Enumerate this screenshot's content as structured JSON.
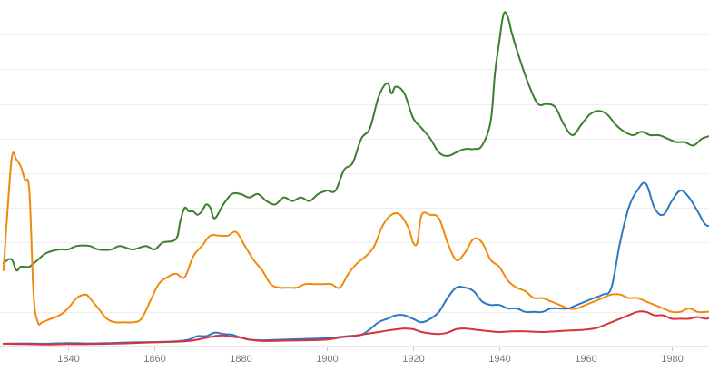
{
  "chart_data": {
    "type": "line",
    "xlim": [
      1825,
      2000
    ],
    "ylim": [
      0,
      100
    ],
    "grid": true,
    "legend": "none",
    "x_ticks": [
      1840,
      1860,
      1880,
      1900,
      1920,
      1940,
      1960,
      1980
    ],
    "x_tick_labels": [
      "1840",
      "1860",
      "1880",
      "1900",
      "1920",
      "1940",
      "1960",
      "1980"
    ],
    "y_gridlines": [
      10,
      20,
      30,
      40,
      50,
      60,
      70,
      80,
      90
    ],
    "series": [
      {
        "color": "#3b7f2e",
        "points": [
          [
            1825,
            24
          ],
          [
            1826,
            25
          ],
          [
            1827,
            25
          ],
          [
            1828,
            22
          ],
          [
            1829,
            23
          ],
          [
            1830,
            23
          ],
          [
            1831,
            23
          ],
          [
            1832,
            24
          ],
          [
            1833,
            25
          ],
          [
            1835,
            27
          ],
          [
            1838,
            28
          ],
          [
            1840,
            28
          ],
          [
            1842,
            29
          ],
          [
            1845,
            29
          ],
          [
            1847,
            28
          ],
          [
            1850,
            28
          ],
          [
            1852,
            29
          ],
          [
            1855,
            28
          ],
          [
            1858,
            29
          ],
          [
            1860,
            28
          ],
          [
            1862,
            30
          ],
          [
            1865,
            31
          ],
          [
            1866,
            36
          ],
          [
            1867,
            40
          ],
          [
            1868,
            39
          ],
          [
            1869,
            39
          ],
          [
            1870,
            38
          ],
          [
            1871,
            39
          ],
          [
            1872,
            41
          ],
          [
            1873,
            40
          ],
          [
            1874,
            37
          ],
          [
            1876,
            41
          ],
          [
            1878,
            44
          ],
          [
            1880,
            44
          ],
          [
            1882,
            43
          ],
          [
            1884,
            44
          ],
          [
            1886,
            42
          ],
          [
            1888,
            41
          ],
          [
            1890,
            43
          ],
          [
            1892,
            42
          ],
          [
            1894,
            43
          ],
          [
            1896,
            42
          ],
          [
            1898,
            44
          ],
          [
            1900,
            45
          ],
          [
            1902,
            45
          ],
          [
            1904,
            51
          ],
          [
            1906,
            53
          ],
          [
            1908,
            60
          ],
          [
            1910,
            63
          ],
          [
            1912,
            72
          ],
          [
            1914,
            76
          ],
          [
            1915,
            73
          ],
          [
            1916,
            75
          ],
          [
            1918,
            73
          ],
          [
            1920,
            66
          ],
          [
            1922,
            63
          ],
          [
            1924,
            60
          ],
          [
            1926,
            56
          ],
          [
            1928,
            55
          ],
          [
            1930,
            56
          ],
          [
            1932,
            57
          ],
          [
            1934,
            57
          ],
          [
            1936,
            58
          ],
          [
            1938,
            65
          ],
          [
            1939,
            79
          ],
          [
            1940,
            88
          ],
          [
            1941,
            96
          ],
          [
            1942,
            95
          ],
          [
            1943,
            90
          ],
          [
            1945,
            82
          ],
          [
            1947,
            75
          ],
          [
            1949,
            70
          ],
          [
            1951,
            70
          ],
          [
            1953,
            69
          ],
          [
            1955,
            64
          ],
          [
            1957,
            61
          ],
          [
            1959,
            64
          ],
          [
            1961,
            67
          ],
          [
            1963,
            68
          ],
          [
            1965,
            67
          ],
          [
            1967,
            64
          ],
          [
            1969,
            62
          ],
          [
            1971,
            61
          ],
          [
            1973,
            62
          ],
          [
            1975,
            61
          ],
          [
            1977,
            61
          ],
          [
            1979,
            60
          ],
          [
            1981,
            59
          ],
          [
            1983,
            59
          ],
          [
            1985,
            58
          ],
          [
            1987,
            60
          ],
          [
            1989,
            61
          ],
          [
            1991,
            64
          ],
          [
            1993,
            68
          ],
          [
            1995,
            67
          ],
          [
            1997,
            68
          ],
          [
            2000,
            68
          ]
        ]
      },
      {
        "color": "#ef8a0c",
        "points": [
          [
            1825,
            22
          ],
          [
            1826,
            40
          ],
          [
            1827,
            55
          ],
          [
            1828,
            54
          ],
          [
            1829,
            52
          ],
          [
            1830,
            48
          ],
          [
            1831,
            45
          ],
          [
            1832,
            15
          ],
          [
            1833,
            7
          ],
          [
            1834,
            7
          ],
          [
            1836,
            8
          ],
          [
            1838,
            9
          ],
          [
            1840,
            11
          ],
          [
            1842,
            14
          ],
          [
            1844,
            15
          ],
          [
            1845,
            14
          ],
          [
            1847,
            11
          ],
          [
            1849,
            8
          ],
          [
            1851,
            7
          ],
          [
            1853,
            7
          ],
          [
            1855,
            7
          ],
          [
            1857,
            8
          ],
          [
            1859,
            13
          ],
          [
            1861,
            18
          ],
          [
            1863,
            20
          ],
          [
            1865,
            21
          ],
          [
            1867,
            20
          ],
          [
            1869,
            26
          ],
          [
            1871,
            29
          ],
          [
            1873,
            32
          ],
          [
            1875,
            32
          ],
          [
            1877,
            32
          ],
          [
            1879,
            33
          ],
          [
            1881,
            29
          ],
          [
            1883,
            25
          ],
          [
            1885,
            22
          ],
          [
            1887,
            18
          ],
          [
            1889,
            17
          ],
          [
            1891,
            17
          ],
          [
            1893,
            17
          ],
          [
            1895,
            18
          ],
          [
            1897,
            18
          ],
          [
            1899,
            18
          ],
          [
            1901,
            18
          ],
          [
            1903,
            17
          ],
          [
            1905,
            21
          ],
          [
            1907,
            24
          ],
          [
            1909,
            26
          ],
          [
            1911,
            29
          ],
          [
            1913,
            35
          ],
          [
            1915,
            38
          ],
          [
            1917,
            38
          ],
          [
            1919,
            34
          ],
          [
            1920,
            30
          ],
          [
            1921,
            30
          ],
          [
            1922,
            38
          ],
          [
            1924,
            38
          ],
          [
            1926,
            37
          ],
          [
            1928,
            30
          ],
          [
            1930,
            25
          ],
          [
            1932,
            27
          ],
          [
            1934,
            31
          ],
          [
            1936,
            30
          ],
          [
            1938,
            25
          ],
          [
            1940,
            23
          ],
          [
            1942,
            19
          ],
          [
            1944,
            17
          ],
          [
            1946,
            16
          ],
          [
            1948,
            14
          ],
          [
            1950,
            14
          ],
          [
            1952,
            13
          ],
          [
            1954,
            12
          ],
          [
            1956,
            11
          ],
          [
            1958,
            11
          ],
          [
            1960,
            12
          ],
          [
            1962,
            13
          ],
          [
            1964,
            14
          ],
          [
            1966,
            15
          ],
          [
            1968,
            15
          ],
          [
            1970,
            14
          ],
          [
            1972,
            14
          ],
          [
            1974,
            13
          ],
          [
            1976,
            12
          ],
          [
            1978,
            11
          ],
          [
            1980,
            10
          ],
          [
            1982,
            10
          ],
          [
            1984,
            11
          ],
          [
            1986,
            10
          ],
          [
            1988,
            10
          ],
          [
            1990,
            10
          ],
          [
            1992,
            10
          ],
          [
            1994,
            10
          ],
          [
            1996,
            9
          ],
          [
            2000,
            9
          ]
        ]
      },
      {
        "color": "#2d78c4",
        "points": [
          [
            1825,
            0.8
          ],
          [
            1830,
            0.9
          ],
          [
            1835,
            0.8
          ],
          [
            1840,
            1.0
          ],
          [
            1845,
            0.9
          ],
          [
            1850,
            1.0
          ],
          [
            1855,
            1.2
          ],
          [
            1860,
            1.3
          ],
          [
            1865,
            1.5
          ],
          [
            1868,
            2
          ],
          [
            1870,
            3
          ],
          [
            1872,
            3
          ],
          [
            1874,
            4
          ],
          [
            1876,
            3.6
          ],
          [
            1878,
            3.4
          ],
          [
            1880,
            2.6
          ],
          [
            1882,
            2.0
          ],
          [
            1885,
            1.8
          ],
          [
            1888,
            1.9
          ],
          [
            1890,
            2.0
          ],
          [
            1895,
            2.2
          ],
          [
            1900,
            2.4
          ],
          [
            1905,
            3.0
          ],
          [
            1908,
            3.4
          ],
          [
            1910,
            5
          ],
          [
            1912,
            7
          ],
          [
            1914,
            8
          ],
          [
            1916,
            9
          ],
          [
            1918,
            9
          ],
          [
            1920,
            8
          ],
          [
            1922,
            7
          ],
          [
            1924,
            8
          ],
          [
            1926,
            10
          ],
          [
            1928,
            14
          ],
          [
            1930,
            17
          ],
          [
            1932,
            17
          ],
          [
            1934,
            16
          ],
          [
            1936,
            13
          ],
          [
            1938,
            12
          ],
          [
            1940,
            12
          ],
          [
            1942,
            11
          ],
          [
            1944,
            11
          ],
          [
            1946,
            10
          ],
          [
            1948,
            10
          ],
          [
            1950,
            10
          ],
          [
            1952,
            11
          ],
          [
            1954,
            11
          ],
          [
            1956,
            11
          ],
          [
            1958,
            12
          ],
          [
            1960,
            13
          ],
          [
            1962,
            14
          ],
          [
            1964,
            15
          ],
          [
            1966,
            17
          ],
          [
            1968,
            30
          ],
          [
            1970,
            40
          ],
          [
            1972,
            45
          ],
          [
            1974,
            47
          ],
          [
            1976,
            40
          ],
          [
            1978,
            38
          ],
          [
            1980,
            42
          ],
          [
            1982,
            45
          ],
          [
            1984,
            43
          ],
          [
            1986,
            39
          ],
          [
            1988,
            35
          ],
          [
            1990,
            36
          ],
          [
            1992,
            39
          ],
          [
            1994,
            37
          ],
          [
            1996,
            38
          ],
          [
            1998,
            39
          ],
          [
            2000,
            40
          ]
        ]
      },
      {
        "color": "#d6333a",
        "points": [
          [
            1825,
            0.8
          ],
          [
            1830,
            0.7
          ],
          [
            1835,
            0.6
          ],
          [
            1840,
            0.7
          ],
          [
            1845,
            0.7
          ],
          [
            1850,
            0.8
          ],
          [
            1855,
            1.0
          ],
          [
            1860,
            1.2
          ],
          [
            1865,
            1.4
          ],
          [
            1868,
            1.6
          ],
          [
            1870,
            2.0
          ],
          [
            1872,
            2.5
          ],
          [
            1874,
            3.0
          ],
          [
            1876,
            3.2
          ],
          [
            1878,
            2.8
          ],
          [
            1880,
            2.6
          ],
          [
            1882,
            2.0
          ],
          [
            1885,
            1.6
          ],
          [
            1890,
            1.7
          ],
          [
            1895,
            1.8
          ],
          [
            1900,
            2.0
          ],
          [
            1903,
            2.6
          ],
          [
            1906,
            3.0
          ],
          [
            1909,
            3.6
          ],
          [
            1912,
            4.2
          ],
          [
            1915,
            4.8
          ],
          [
            1918,
            5.2
          ],
          [
            1920,
            5.0
          ],
          [
            1922,
            4.2
          ],
          [
            1924,
            3.8
          ],
          [
            1926,
            3.6
          ],
          [
            1928,
            4.0
          ],
          [
            1930,
            5.0
          ],
          [
            1932,
            5.2
          ],
          [
            1935,
            4.8
          ],
          [
            1938,
            4.4
          ],
          [
            1940,
            4.2
          ],
          [
            1943,
            4.4
          ],
          [
            1946,
            4.4
          ],
          [
            1950,
            4.2
          ],
          [
            1953,
            4.4
          ],
          [
            1956,
            4.6
          ],
          [
            1959,
            4.8
          ],
          [
            1962,
            5.2
          ],
          [
            1964,
            6
          ],
          [
            1966,
            7
          ],
          [
            1968,
            8
          ],
          [
            1970,
            9
          ],
          [
            1972,
            10
          ],
          [
            1974,
            10
          ],
          [
            1976,
            9
          ],
          [
            1978,
            9
          ],
          [
            1980,
            8
          ],
          [
            1982,
            8
          ],
          [
            1984,
            8
          ],
          [
            1986,
            8.5
          ],
          [
            1988,
            8
          ],
          [
            1990,
            9
          ],
          [
            1992,
            10
          ],
          [
            1994,
            11
          ],
          [
            1996,
            12
          ],
          [
            1998,
            12
          ],
          [
            2000,
            11.5
          ]
        ]
      }
    ]
  }
}
